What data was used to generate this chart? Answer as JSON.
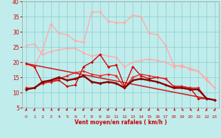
{
  "xlabel": "Vent moyen/en rafales ( km/h )",
  "xlim": [
    -0.5,
    23.5
  ],
  "ylim": [
    5,
    40
  ],
  "yticks": [
    5,
    10,
    15,
    20,
    25,
    30,
    35,
    40
  ],
  "xticks": [
    0,
    1,
    2,
    3,
    4,
    5,
    6,
    7,
    8,
    9,
    10,
    11,
    12,
    13,
    14,
    15,
    16,
    17,
    18,
    19,
    20,
    21,
    22,
    23
  ],
  "bg_color": "#c0ecec",
  "grid_color": "#88cccc",
  "series": [
    {
      "label": "light_pink_upper",
      "x": [
        0,
        1,
        2,
        3,
        4,
        5,
        6,
        7,
        8,
        9,
        10,
        11,
        12,
        13,
        14,
        15,
        16,
        17,
        18,
        19,
        20,
        21,
        22,
        23
      ],
      "y": [
        19.0,
        18.5,
        24.0,
        32.5,
        29.5,
        29.0,
        27.0,
        26.5,
        36.5,
        36.5,
        33.5,
        33.0,
        33.0,
        35.5,
        35.0,
        29.5,
        29.0,
        25.5,
        19.0,
        18.5,
        18.0,
        17.0,
        14.0,
        11.5
      ],
      "color": "#ffaaaa",
      "lw": 1.0,
      "marker": "D",
      "ms": 2.2,
      "zorder": 2
    },
    {
      "label": "light_pink_lower",
      "x": [
        0,
        1,
        2,
        3,
        4,
        5,
        6,
        7,
        8,
        9,
        10,
        11,
        12,
        13,
        14,
        15,
        16,
        17,
        18,
        19,
        20,
        21,
        22,
        23
      ],
      "y": [
        25.5,
        26.0,
        22.5,
        23.5,
        24.0,
        24.5,
        24.5,
        23.0,
        22.0,
        22.5,
        22.0,
        21.5,
        18.5,
        20.0,
        20.5,
        21.0,
        20.5,
        20.0,
        18.5,
        19.0,
        17.5,
        17.0,
        14.5,
        11.5
      ],
      "color": "#ffaaaa",
      "lw": 1.0,
      "marker": "D",
      "ms": 2.2,
      "zorder": 2
    },
    {
      "label": "dark_red_jagged",
      "x": [
        0,
        1,
        2,
        3,
        4,
        5,
        6,
        7,
        8,
        9,
        10,
        11,
        12,
        13,
        14,
        15,
        16,
        17,
        18,
        19,
        20,
        21,
        22,
        23
      ],
      "y": [
        19.5,
        18.5,
        13.0,
        13.5,
        14.0,
        12.0,
        12.5,
        18.5,
        20.0,
        22.5,
        18.5,
        19.0,
        12.0,
        18.5,
        15.5,
        14.5,
        15.0,
        14.5,
        12.0,
        12.0,
        11.5,
        8.0,
        8.0,
        7.5
      ],
      "color": "#cc0000",
      "lw": 1.0,
      "marker": "D",
      "ms": 2.2,
      "zorder": 3
    },
    {
      "label": "med_red_upper",
      "x": [
        0,
        1,
        2,
        3,
        4,
        5,
        6,
        7,
        8,
        9,
        10,
        11,
        12,
        13,
        14,
        15,
        16,
        17,
        18,
        19,
        20,
        21,
        22,
        23
      ],
      "y": [
        11.5,
        11.5,
        13.0,
        13.5,
        14.5,
        15.5,
        16.5,
        17.0,
        16.0,
        15.5,
        16.0,
        15.5,
        11.5,
        15.0,
        16.0,
        15.5,
        15.0,
        14.5,
        12.0,
        12.0,
        11.5,
        11.5,
        8.0,
        7.5
      ],
      "color": "#ee2222",
      "lw": 1.0,
      "marker": "D",
      "ms": 2.2,
      "zorder": 3
    },
    {
      "label": "dark_red_lower",
      "x": [
        0,
        1,
        2,
        3,
        4,
        5,
        6,
        7,
        8,
        9,
        10,
        11,
        12,
        13,
        14,
        15,
        16,
        17,
        18,
        19,
        20,
        21,
        22,
        23
      ],
      "y": [
        11.0,
        11.5,
        13.5,
        14.0,
        15.0,
        14.0,
        14.5,
        15.5,
        13.5,
        13.0,
        13.5,
        13.0,
        11.5,
        14.0,
        14.5,
        14.0,
        13.5,
        12.5,
        11.5,
        11.5,
        11.0,
        11.0,
        8.0,
        7.5
      ],
      "color": "#880000",
      "lw": 1.8,
      "marker": "D",
      "ms": 2.2,
      "zorder": 3
    },
    {
      "label": "trend_line",
      "x": [
        0,
        23
      ],
      "y": [
        19.5,
        7.5
      ],
      "color": "#cc2222",
      "lw": 1.2,
      "marker": null,
      "ms": 0,
      "zorder": 2
    }
  ],
  "xlabel_color": "#cc0000",
  "tick_color": "#cc0000",
  "arrow_color": "#cc0000",
  "arrow_angles": [
    220,
    220,
    270,
    270,
    310,
    310,
    310,
    310,
    310,
    310,
    310,
    310,
    310,
    310,
    310,
    310,
    270,
    270,
    270,
    270,
    270,
    220,
    220,
    220
  ]
}
